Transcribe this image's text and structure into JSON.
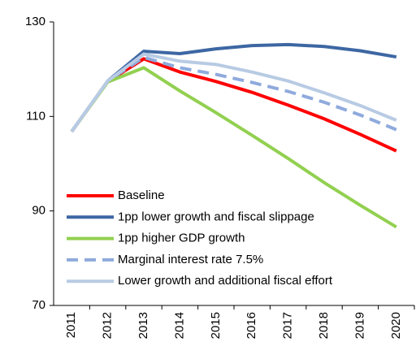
{
  "chart_data": {
    "type": "line",
    "categories": [
      "2011",
      "2012",
      "2013",
      "2014",
      "2015",
      "2016",
      "2017",
      "2018",
      "2019",
      "2020"
    ],
    "series": [
      {
        "name": "Baseline",
        "color": "#ff0000",
        "values": [
          106.8,
          117.4,
          122.2,
          119.4,
          117.4,
          115.1,
          112.4,
          109.5,
          106.2,
          102.7
        ]
      },
      {
        "name": "1pp lower growth and fiscal slippage",
        "color": "#3d67a3",
        "values": [
          106.8,
          117.5,
          123.8,
          123.3,
          124.3,
          125.0,
          125.2,
          124.8,
          123.9,
          122.6
        ]
      },
      {
        "name": "1pp higher GDP growth",
        "color": "#92d050",
        "values": [
          106.8,
          117.3,
          120.3,
          115.4,
          110.8,
          106.0,
          101.1,
          96.0,
          91.2,
          86.6
        ]
      },
      {
        "name": "Marginal interest rate 7.5%",
        "color": "#8faadc",
        "dashed": true,
        "values": [
          106.8,
          117.5,
          122.5,
          120.3,
          118.9,
          117.2,
          115.3,
          113.0,
          110.3,
          107.2
        ]
      },
      {
        "name": "Lower growth and additional fiscal effort",
        "color": "#b8cbe4",
        "values": [
          106.8,
          117.5,
          123.2,
          121.7,
          121.0,
          119.4,
          117.5,
          115.0,
          112.3,
          109.2
        ]
      }
    ],
    "ylim": [
      70,
      130
    ],
    "yticks": [
      70,
      90,
      110,
      130
    ]
  }
}
